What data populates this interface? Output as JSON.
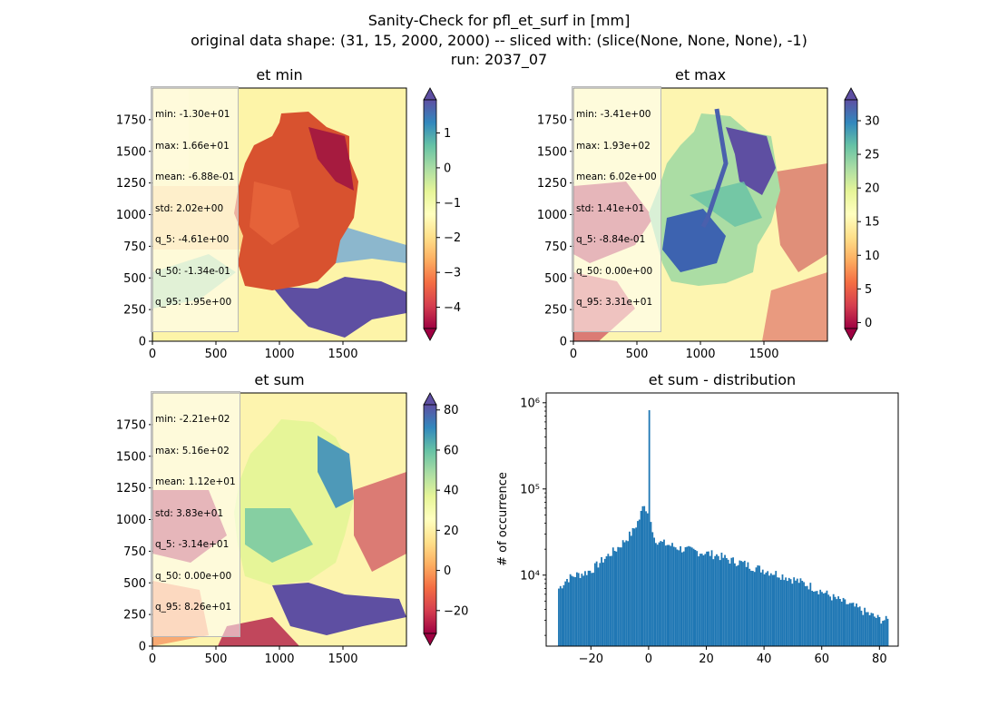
{
  "title_lines": [
    "Sanity-Check for pfl_et_surf in [mm]",
    "original data shape: (31, 15, 2000, 2000) -- sliced with: (slice(None, None, None), -1)",
    "run: 2037_07"
  ],
  "chart_data": [
    {
      "type": "heatmap",
      "title": "et min",
      "x_ticks": [
        0,
        500,
        1000,
        1500
      ],
      "y_ticks": [
        0,
        250,
        500,
        750,
        1000,
        1250,
        1500,
        1750
      ],
      "xlim": [
        0,
        2000
      ],
      "ylim": [
        0,
        2000
      ],
      "colormap": "Spectral",
      "colorbar": {
        "ticks": [
          1,
          0,
          -1,
          -2,
          -3,
          -4
        ],
        "vmin": -4.61,
        "vmax": 1.95,
        "extend": "both"
      },
      "stats": [
        "min: -1.30e+01",
        "max: 1.66e+01",
        "mean: -6.88e-01",
        "std: 2.02e+00",
        "q_5: -4.61e+00",
        "q_50: -1.34e-01",
        "q_95: 1.95e+00"
      ]
    },
    {
      "type": "heatmap",
      "title": "et max",
      "x_ticks": [
        0,
        500,
        1000,
        1500
      ],
      "y_ticks": [
        0,
        250,
        500,
        750,
        1000,
        1250,
        1500,
        1750
      ],
      "xlim": [
        0,
        2000
      ],
      "ylim": [
        0,
        2000
      ],
      "colormap": "Spectral",
      "colorbar": {
        "ticks": [
          30,
          25,
          20,
          15,
          10,
          5,
          0
        ],
        "vmin": -0.884,
        "vmax": 33.1,
        "extend": "both"
      },
      "stats": [
        "min: -3.41e+00",
        "max: 1.93e+02",
        "mean: 6.02e+00",
        "std: 1.41e+01",
        "q_5: -8.84e-01",
        "q_50: 0.00e+00",
        "q_95: 3.31e+01"
      ]
    },
    {
      "type": "heatmap",
      "title": "et sum",
      "x_ticks": [
        0,
        500,
        1000,
        1500
      ],
      "y_ticks": [
        0,
        250,
        500,
        750,
        1000,
        1250,
        1500,
        1750
      ],
      "xlim": [
        0,
        2000
      ],
      "ylim": [
        0,
        2000
      ],
      "colormap": "Spectral",
      "colorbar": {
        "ticks": [
          80,
          60,
          40,
          20,
          0,
          -20
        ],
        "vmin": -31.4,
        "vmax": 82.6,
        "extend": "both"
      },
      "stats": [
        "min: -2.21e+02",
        "max: 5.16e+02",
        "mean: 1.12e+01",
        "std: 3.83e+01",
        "q_5: -3.14e+01",
        "q_50: 0.00e+00",
        "q_95: 8.26e+01"
      ]
    },
    {
      "type": "bar",
      "title": "et sum - distribution",
      "ylabel": "# of occurrence",
      "yscale": "log",
      "ylim": [
        1500,
        1300000
      ],
      "xlim": [
        -35.5,
        86.5
      ],
      "x_ticks": [
        -20,
        0,
        20,
        40,
        60,
        80
      ],
      "y_ticks": [
        {
          "value": 10000,
          "label": "10⁴"
        },
        {
          "value": 100000,
          "label": "10⁵"
        },
        {
          "value": 1000000,
          "label": "10⁶"
        }
      ],
      "bin_range": [
        -31.4,
        82.6
      ],
      "bin_width": 0.57,
      "color": "#1f77b4",
      "series": [
        {
          "x": [
            -31.1,
            -28.3,
            -25.4,
            -22.6,
            -19.7,
            -16.9,
            -14.0,
            -11.2,
            -8.3,
            -5.5,
            -3.2,
            -1.5,
            -0.9,
            -0.3,
            0.0,
            0.3,
            0.9,
            2.0,
            4.0,
            8.0,
            12.0,
            16.0,
            20.0,
            24.0,
            28.0,
            32.0,
            36.0,
            40.0,
            44.0,
            48.0,
            52.0,
            56.0,
            60.0,
            64.0,
            68.0,
            72.0,
            76.0,
            80.0,
            82.3
          ],
          "y": [
            7000,
            9000,
            10000,
            10500,
            11500,
            14000,
            17000,
            20000,
            25000,
            32000,
            45000,
            70000,
            55000,
            52000,
            820000,
            50000,
            40000,
            27000,
            24000,
            22000,
            20000,
            19000,
            18000,
            17000,
            15000,
            14000,
            12500,
            11500,
            10500,
            9500,
            8500,
            7500,
            6500,
            5500,
            4800,
            4200,
            3600,
            3100,
            3000
          ]
        }
      ]
    }
  ]
}
